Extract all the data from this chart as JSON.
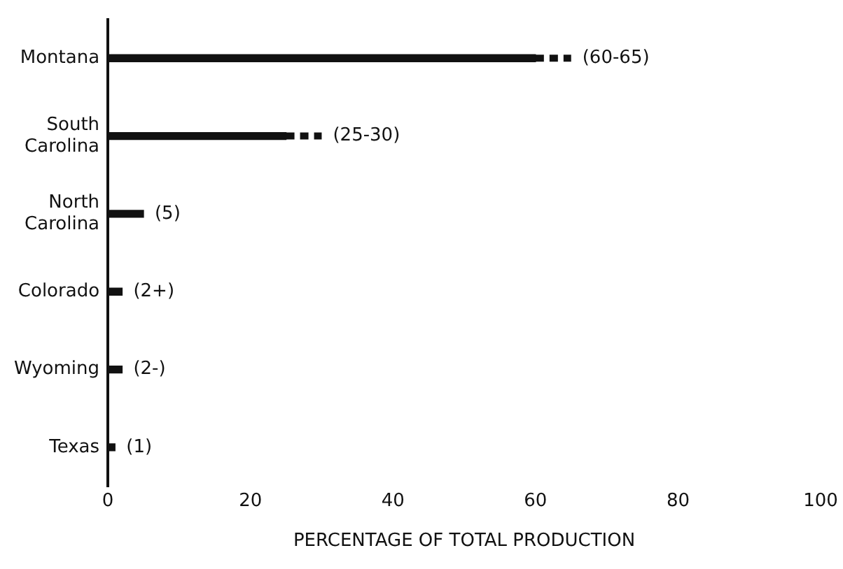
{
  "chart_data": {
    "type": "bar",
    "orientation": "horizontal",
    "xlabel": "PERCENTAGE OF TOTAL PRODUCTION",
    "categories": [
      "Montana",
      "South Carolina",
      "North Carolina",
      "Colorado",
      "Wyoming",
      "Texas"
    ],
    "values": [
      60,
      25,
      5,
      2,
      2,
      1
    ],
    "errors": [
      [
        60,
        65
      ],
      [
        25,
        30
      ],
      null,
      null,
      null,
      null
    ],
    "value_labels": [
      "(60-65)",
      "(25-30)",
      "(5)",
      "(2+)",
      "(2-)",
      "(1)"
    ],
    "color": "#111111",
    "xlim": [
      0,
      100
    ],
    "xticks": [
      0,
      20,
      40,
      60,
      80,
      100
    ],
    "grid": false,
    "legend": false
  }
}
